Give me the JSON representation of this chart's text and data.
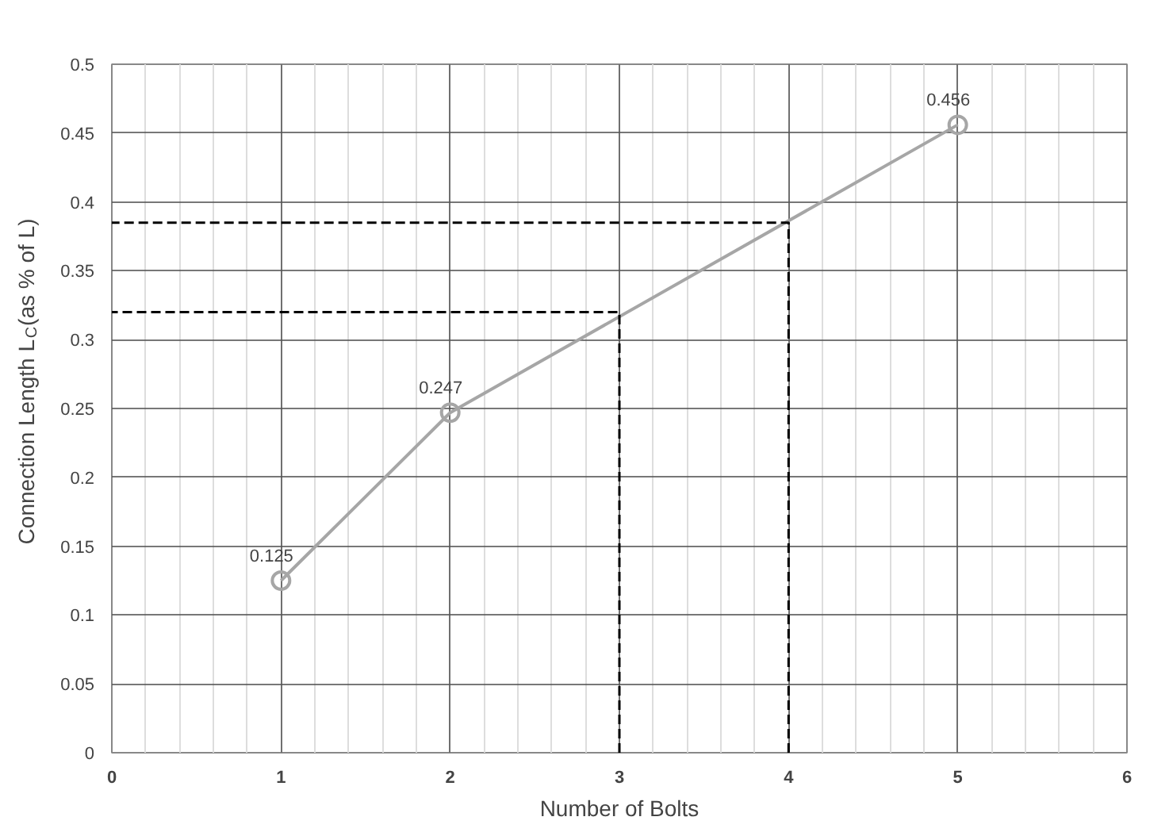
{
  "chart_data": {
    "type": "line",
    "xlabel": "Number of Bolts",
    "ylabel": "Connection Length L$_{C}$(as % of L)",
    "xlim": [
      0,
      6
    ],
    "xticks": [
      0,
      1,
      2,
      3,
      4,
      5,
      6
    ],
    "ylim": [
      0,
      0.5
    ],
    "yticks": [
      0,
      0.05,
      0.1,
      0.15,
      0.2,
      0.25,
      0.3,
      0.35,
      0.4,
      0.45,
      0.5
    ],
    "grid": true,
    "series": [
      {
        "x": [
          1,
          2,
          5
        ],
        "values": [
          0.125,
          0.247,
          0.456
        ],
        "color": "#a6a6a6",
        "marker": "circle",
        "line_style": "solid",
        "data_labels": true
      },
      {
        "x": [
          3,
          3,
          0
        ],
        "values": [
          0,
          0.32,
          0.32
        ],
        "color": "#000000",
        "marker": "none",
        "line_style": "dashed"
      },
      {
        "x": [
          4,
          4,
          0
        ],
        "values": [
          0,
          0.385,
          0.385
        ],
        "color": "#000000",
        "marker": "none",
        "line_style": "dashed"
      }
    ]
  }
}
